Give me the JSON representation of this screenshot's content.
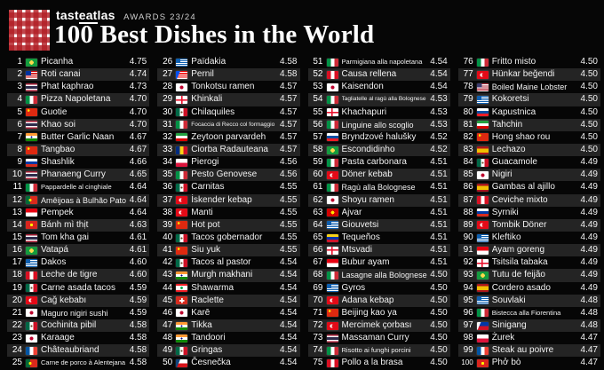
{
  "header": {
    "brand_pre": "tast",
    "brand_mid": "eat",
    "brand_post": "las",
    "awards": "AWARDS 23/24",
    "title": "100 Best Dishes in the World"
  },
  "colors": {
    "background": "#060606",
    "row_alt": "#242424",
    "text": "#f2f2f2",
    "logo_red": "#b21e25"
  },
  "chart_data": {
    "type": "table",
    "title": "100 Best Dishes in the World",
    "subtitle": "tasteatlas AWARDS 23/24",
    "columns": [
      "rank",
      "dish",
      "country",
      "rating"
    ],
    "layout": "4 columns of 25 ranked rows, alternating dark stripes",
    "rows": [
      [
        1,
        "Picanha",
        "brazil",
        "4.75"
      ],
      [
        2,
        "Roti canai",
        "malaysia",
        "4.74"
      ],
      [
        3,
        "Phat kaphrao",
        "thailand",
        "4.73"
      ],
      [
        4,
        "Pizza Napoletana",
        "italy",
        "4.70"
      ],
      [
        5,
        "Guotie",
        "china",
        "4.70"
      ],
      [
        6,
        "Khao soi",
        "thailand",
        "4.70"
      ],
      [
        7,
        "Butter Garlic Naan",
        "india",
        "4.67"
      ],
      [
        8,
        "Tangbao",
        "china",
        "4.67"
      ],
      [
        9,
        "Shashlik",
        "russia",
        "4.66"
      ],
      [
        10,
        "Phanaeng Curry",
        "thailand",
        "4.65"
      ],
      [
        11,
        "Pappardelle al cinghiale",
        "italy",
        "4.64"
      ],
      [
        12,
        "Amêijoas à Bulhão Pato",
        "portugal",
        "4.64"
      ],
      [
        13,
        "Pempek",
        "indonesia",
        "4.64"
      ],
      [
        14,
        "Bánh mì thịt",
        "vietnam",
        "4.63"
      ],
      [
        15,
        "Tom kha gai",
        "thailand",
        "4.61"
      ],
      [
        16,
        "Vatapá",
        "brazil",
        "4.61"
      ],
      [
        17,
        "Dakos",
        "greece",
        "4.60"
      ],
      [
        18,
        "Leche de tigre",
        "peru",
        "4.60"
      ],
      [
        19,
        "Carne asada tacos",
        "mexico",
        "4.59"
      ],
      [
        20,
        "Cağ kebabı",
        "turkey",
        "4.59"
      ],
      [
        21,
        "Maguro nigiri sushi",
        "japan",
        "4.59"
      ],
      [
        22,
        "Cochinita pibil",
        "mexico",
        "4.58"
      ],
      [
        23,
        "Karaage",
        "japan",
        "4.58"
      ],
      [
        24,
        "Châteaubriand",
        "france",
        "4.58"
      ],
      [
        25,
        "Carne de porco à Alentejana",
        "portugal",
        "4.58"
      ],
      [
        26,
        "Païdakia",
        "greece",
        "4.58"
      ],
      [
        27,
        "Pernil",
        "puerto-rico",
        "4.58"
      ],
      [
        28,
        "Tonkotsu ramen",
        "japan",
        "4.57"
      ],
      [
        29,
        "Khinkali",
        "georgia",
        "4.57"
      ],
      [
        30,
        "Chilaquiles",
        "mexico",
        "4.57"
      ],
      [
        31,
        "Focaccia di Recco col formaggio",
        "italy",
        "4.57"
      ],
      [
        32,
        "Zeytoon parvardeh",
        "iran",
        "4.57"
      ],
      [
        33,
        "Ciorba Radauteana",
        "romania",
        "4.57"
      ],
      [
        34,
        "Pierogi",
        "poland",
        "4.56"
      ],
      [
        35,
        "Pesto Genovese",
        "italy",
        "4.56"
      ],
      [
        36,
        "Carnitas",
        "mexico",
        "4.55"
      ],
      [
        37,
        "İskender kebap",
        "turkey",
        "4.55"
      ],
      [
        38,
        "Manti",
        "turkey",
        "4.55"
      ],
      [
        39,
        "Hot pot",
        "china",
        "4.55"
      ],
      [
        40,
        "Tacos gobernador",
        "mexico",
        "4.55"
      ],
      [
        41,
        "Siu yuk",
        "china",
        "4.55"
      ],
      [
        42,
        "Tacos al pastor",
        "mexico",
        "4.54"
      ],
      [
        43,
        "Murgh makhani",
        "india",
        "4.54"
      ],
      [
        44,
        "Shawarma",
        "lebanon",
        "4.54"
      ],
      [
        45,
        "Raclette",
        "switzerland",
        "4.54"
      ],
      [
        46,
        "Karē",
        "japan",
        "4.54"
      ],
      [
        47,
        "Tikka",
        "india",
        "4.54"
      ],
      [
        48,
        "Tandoori",
        "india",
        "4.54"
      ],
      [
        49,
        "Gringas",
        "mexico",
        "4.54"
      ],
      [
        50,
        "Česnečka",
        "czechia",
        "4.54"
      ],
      [
        51,
        "Parmigiana alla napoletana",
        "italy",
        "4.54"
      ],
      [
        52,
        "Causa rellena",
        "peru",
        "4.54"
      ],
      [
        53,
        "Kaisendon",
        "japan",
        "4.54"
      ],
      [
        54,
        "Tagliatelle al ragù alla Bolognese",
        "italy",
        "4.53"
      ],
      [
        55,
        "Khachapuri",
        "georgia",
        "4.53"
      ],
      [
        56,
        "Linguine allo scoglio",
        "italy",
        "4.53"
      ],
      [
        57,
        "Bryndzové halušky",
        "slovakia",
        "4.52"
      ],
      [
        58,
        "Escondidinho",
        "brazil",
        "4.52"
      ],
      [
        59,
        "Pasta carbonara",
        "italy",
        "4.51"
      ],
      [
        60,
        "Döner kebab",
        "turkey",
        "4.51"
      ],
      [
        61,
        "Ragù alla Bolognese",
        "italy",
        "4.51"
      ],
      [
        62,
        "Shoyu ramen",
        "japan",
        "4.51"
      ],
      [
        63,
        "Ajvar",
        "north-macedonia",
        "4.51"
      ],
      [
        64,
        "Giouvetsi",
        "greece",
        "4.51"
      ],
      [
        65,
        "Tequeños",
        "venezuela",
        "4.51"
      ],
      [
        66,
        "Mtsvadi",
        "georgia",
        "4.51"
      ],
      [
        67,
        "Bubur ayam",
        "indonesia",
        "4.51"
      ],
      [
        68,
        "Lasagne alla Bolognese",
        "italy",
        "4.50"
      ],
      [
        69,
        "Gyros",
        "greece",
        "4.50"
      ],
      [
        70,
        "Adana kebap",
        "turkey",
        "4.50"
      ],
      [
        71,
        "Beijing kao ya",
        "china",
        "4.50"
      ],
      [
        72,
        "Mercimek çorbası",
        "turkey",
        "4.50"
      ],
      [
        73,
        "Massaman Curry",
        "thailand",
        "4.50"
      ],
      [
        74,
        "Risotto ai funghi porcini",
        "italy",
        "4.50"
      ],
      [
        75,
        "Pollo a la brasa",
        "peru",
        "4.50"
      ],
      [
        76,
        "Fritto misto",
        "italy",
        "4.50"
      ],
      [
        77,
        "Hünkar beğendi",
        "turkey",
        "4.50"
      ],
      [
        78,
        "Boiled Maine Lobster",
        "usa",
        "4.50"
      ],
      [
        79,
        "Kokoretsi",
        "greece",
        "4.50"
      ],
      [
        80,
        "Kapustnica",
        "slovakia",
        "4.50"
      ],
      [
        81,
        "Tahchin",
        "iran",
        "4.50"
      ],
      [
        82,
        "Hong shao rou",
        "china",
        "4.50"
      ],
      [
        83,
        "Lechazo",
        "spain",
        "4.50"
      ],
      [
        84,
        "Guacamole",
        "mexico",
        "4.49"
      ],
      [
        85,
        "Nigiri",
        "japan",
        "4.49"
      ],
      [
        86,
        "Gambas al ajillo",
        "spain",
        "4.49"
      ],
      [
        87,
        "Ceviche mixto",
        "peru",
        "4.49"
      ],
      [
        88,
        "Syrniki",
        "russia",
        "4.49"
      ],
      [
        89,
        "Tombik Döner",
        "turkey",
        "4.49"
      ],
      [
        90,
        "Kleftiko",
        "greece",
        "4.49"
      ],
      [
        91,
        "Ayam goreng",
        "indonesia",
        "4.49"
      ],
      [
        92,
        "Tsitsila tabaka",
        "georgia",
        "4.49"
      ],
      [
        93,
        "Tutu de feijão",
        "brazil",
        "4.49"
      ],
      [
        94,
        "Cordero asado",
        "spain",
        "4.49"
      ],
      [
        95,
        "Souvlaki",
        "greece",
        "4.48"
      ],
      [
        96,
        "Bistecca alla Fiorentina",
        "italy",
        "4.48"
      ],
      [
        97,
        "Sinigang",
        "philippines",
        "4.48"
      ],
      [
        98,
        "Żurek",
        "poland",
        "4.47"
      ],
      [
        99,
        "Steak au poivre",
        "france",
        "4.47"
      ],
      [
        100,
        "Phở bò",
        "vietnam",
        "4.47"
      ]
    ]
  }
}
